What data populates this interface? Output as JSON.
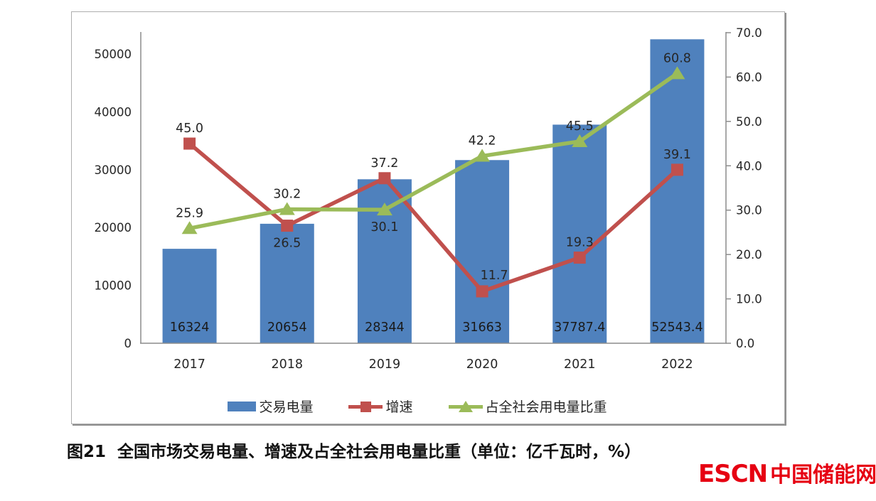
{
  "figure": {
    "caption": "图21  全国市场交易电量、增速及占全社会用电量比重（单位：亿千瓦时，%）",
    "logo": {
      "latin": "ESCN",
      "cjk": "中国储能网",
      "color": "#e60012"
    }
  },
  "chart_data": {
    "type": "combo-bar-line",
    "categories": [
      "2017",
      "2018",
      "2019",
      "2020",
      "2021",
      "2022"
    ],
    "series": [
      {
        "name": "交易电量",
        "type": "bar",
        "axis": "left",
        "color": "#4f81bd",
        "values": [
          16324,
          20654,
          28344,
          31663,
          37787.4,
          52543.4
        ],
        "labels": [
          "16324",
          "20654",
          "28344",
          "31663",
          "37787.4",
          "52543.4"
        ],
        "label_placement": "inside-base"
      },
      {
        "name": "增速",
        "type": "line",
        "marker": "square",
        "axis": "right",
        "color": "#c0504d",
        "values": [
          45.0,
          26.5,
          37.2,
          11.7,
          19.3,
          39.1
        ],
        "labels": [
          "45.0",
          "26.5",
          "37.2",
          "11.7",
          "19.3",
          "39.1"
        ],
        "label_positions": [
          "above",
          "below",
          "above",
          "above-right",
          "above",
          "above"
        ]
      },
      {
        "name": "占全社会用电量比重",
        "type": "line",
        "marker": "triangle",
        "axis": "right",
        "color": "#9bbb59",
        "values": [
          25.9,
          30.2,
          30.1,
          42.2,
          45.5,
          60.8
        ],
        "labels": [
          "25.9",
          "30.2",
          "30.1",
          "42.2",
          "45.5",
          "60.8"
        ],
        "label_positions": [
          "above",
          "above",
          "below",
          "above",
          "above",
          "above"
        ]
      }
    ],
    "left_axis": {
      "min": 0,
      "max": 50000,
      "step": 10000,
      "ticks": [
        "0",
        "10000",
        "20000",
        "30000",
        "40000",
        "50000"
      ]
    },
    "right_axis": {
      "min": 0,
      "max": 70,
      "step": 10,
      "ticks": [
        "0.0",
        "10.0",
        "20.0",
        "30.0",
        "40.0",
        "50.0",
        "60.0",
        "70.0"
      ]
    },
    "legend": {
      "position": "bottom",
      "entries": [
        "交易电量",
        "增速",
        "占全社会用电量比重"
      ]
    },
    "grid": false,
    "text_color": "#262626",
    "axis_color": "#8c8c8c"
  }
}
